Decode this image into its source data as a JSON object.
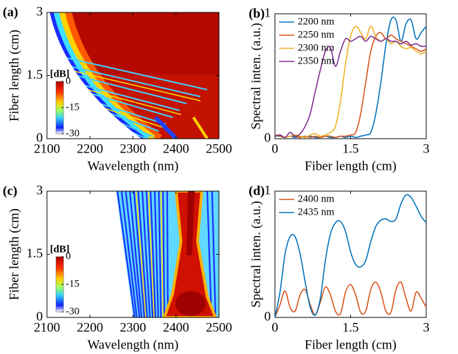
{
  "chart_data": [
    {
      "type": "heatmap",
      "label": "(a)",
      "xlabel": "Wavelength (nm)",
      "ylabel": "Fiber length (cm)",
      "xlim": [
        2100,
        2500
      ],
      "xticks": [
        2100,
        2200,
        2300,
        2400,
        2500
      ],
      "ylim": [
        0,
        3
      ],
      "yticks": [
        0,
        1.5,
        3
      ],
      "colorbar_label": "[dB]",
      "clim": [
        -30,
        0
      ],
      "cticks": [
        0,
        -15,
        -30
      ]
    },
    {
      "type": "line",
      "label": "(b)",
      "xlabel": "Fiber length (cm)",
      "ylabel": "Spectral inten. (a.u.)",
      "xlim": [
        0,
        3
      ],
      "xticks": [
        0,
        1.5,
        3
      ],
      "ylim": [
        0,
        1
      ],
      "yticks": [
        0,
        1
      ],
      "legend": "upper-left",
      "x": [
        0,
        0.1,
        0.2,
        0.3,
        0.4,
        0.5,
        0.6,
        0.7,
        0.8,
        0.9,
        1.0,
        1.1,
        1.2,
        1.3,
        1.4,
        1.5,
        1.6,
        1.7,
        1.8,
        1.9,
        2.0,
        2.1,
        2.2,
        2.3,
        2.4,
        2.5,
        2.6,
        2.7,
        2.8,
        2.9,
        3.0
      ],
      "series": [
        {
          "name": "2200 nm",
          "color": "#0072bd",
          "values": [
            0.02,
            0.02,
            0.01,
            0.02,
            0.01,
            0.02,
            0.01,
            0.02,
            0.01,
            0.01,
            0.02,
            0.01,
            0.01,
            0.02,
            0.01,
            0.02,
            0.01,
            0.02,
            0.03,
            0.05,
            0.2,
            0.45,
            0.75,
            0.95,
            0.95,
            0.78,
            0.92,
            0.95,
            0.8,
            0.85,
            0.9
          ]
        },
        {
          "name": "2250 nm",
          "color": "#d95319",
          "values": [
            0.03,
            0.02,
            0.01,
            0.02,
            0.02,
            0.01,
            0.02,
            0.01,
            0.02,
            0.01,
            0.02,
            0.02,
            0.01,
            0.02,
            0.02,
            0.03,
            0.05,
            0.2,
            0.45,
            0.7,
            0.82,
            0.85,
            0.8,
            0.83,
            0.8,
            0.78,
            0.76,
            0.74,
            0.72,
            0.7,
            0.72
          ]
        },
        {
          "name": "2300 nm",
          "color": "#edb120",
          "values": [
            0.02,
            0.03,
            0.01,
            0.02,
            0.03,
            0.02,
            0.01,
            0.03,
            0.04,
            0.02,
            0.03,
            0.05,
            0.1,
            0.3,
            0.6,
            0.82,
            0.9,
            0.85,
            0.8,
            0.9,
            0.82,
            0.78,
            0.8,
            0.76,
            0.78,
            0.74,
            0.72,
            0.73,
            0.7,
            0.68,
            0.7
          ]
        },
        {
          "name": "2350 nm",
          "color": "#7e2f8e",
          "values": [
            0.02,
            0.03,
            0.01,
            0.05,
            0.02,
            0.04,
            0.1,
            0.2,
            0.38,
            0.55,
            0.7,
            0.73,
            0.58,
            0.7,
            0.8,
            0.78,
            0.8,
            0.82,
            0.78,
            0.82,
            0.8,
            0.78,
            0.8,
            0.78,
            0.78,
            0.76,
            0.78,
            0.75,
            0.76,
            0.74,
            0.74
          ]
        }
      ]
    },
    {
      "type": "heatmap",
      "label": "(c)",
      "xlabel": "Wavelength (nm)",
      "ylabel": "Fiber length (cm)",
      "xlim": [
        2100,
        2500
      ],
      "xticks": [
        2100,
        2200,
        2300,
        2400,
        2500
      ],
      "ylim": [
        0,
        3
      ],
      "yticks": [
        0,
        1.5,
        3
      ],
      "colorbar_label": "[dB]",
      "clim": [
        -30,
        0
      ],
      "cticks": [
        0,
        -15,
        -30
      ]
    },
    {
      "type": "line",
      "label": "(d)",
      "xlabel": "Fiber length (cm)",
      "ylabel": "Spectral inten. (a.u.)",
      "xlim": [
        0,
        3
      ],
      "xticks": [
        0,
        1.5,
        3
      ],
      "ylim": [
        0,
        1
      ],
      "yticks": [
        0,
        1
      ],
      "legend": "upper-left",
      "x": [
        0,
        0.1,
        0.2,
        0.3,
        0.4,
        0.5,
        0.6,
        0.7,
        0.8,
        0.9,
        1.0,
        1.1,
        1.2,
        1.3,
        1.4,
        1.5,
        1.6,
        1.7,
        1.8,
        1.9,
        2.0,
        2.1,
        2.2,
        2.3,
        2.4,
        2.5,
        2.6,
        2.7,
        2.8,
        2.9,
        3.0
      ],
      "series": [
        {
          "name": "2400 nm",
          "color": "#d95319",
          "values": [
            0,
            0.1,
            0.21,
            0.08,
            0.05,
            0.18,
            0.22,
            0.1,
            0.02,
            0.12,
            0.24,
            0.18,
            0.05,
            0.03,
            0.2,
            0.26,
            0.18,
            0.04,
            0.05,
            0.22,
            0.28,
            0.2,
            0.05,
            0.04,
            0.22,
            0.28,
            0.15,
            0.05,
            0.2,
            0.15,
            0.08
          ]
        },
        {
          "name": "2435 nm",
          "color": "#0072bd",
          "values": [
            0,
            0.2,
            0.5,
            0.64,
            0.64,
            0.5,
            0.28,
            0.08,
            0.02,
            0.15,
            0.45,
            0.66,
            0.75,
            0.76,
            0.68,
            0.52,
            0.42,
            0.4,
            0.45,
            0.6,
            0.72,
            0.77,
            0.78,
            0.76,
            0.78,
            0.9,
            0.97,
            0.95,
            0.88,
            0.8,
            0.75
          ]
        }
      ]
    }
  ]
}
